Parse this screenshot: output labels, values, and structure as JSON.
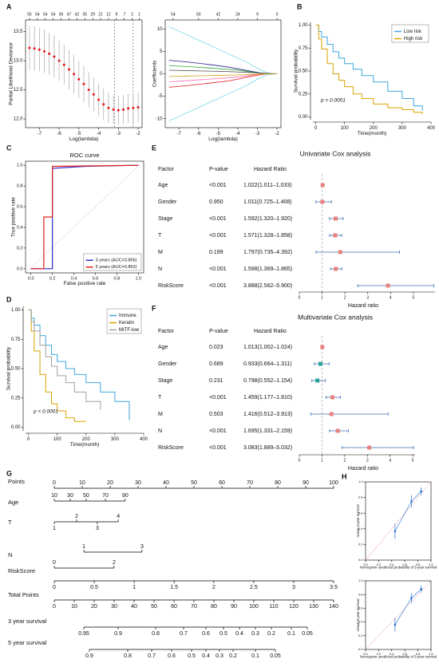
{
  "chart_data": [
    {
      "panel": "A",
      "type": "errorbar",
      "xlabel": "Log(lambda)",
      "ylabel": "Partial Likelihood Deviance",
      "x": [
        -7.5,
        -7.25,
        -7,
        -6.75,
        -6.5,
        -6.25,
        -6,
        -5.75,
        -5.5,
        -5.25,
        -5,
        -4.75,
        -4.5,
        -4.25,
        -4,
        -3.75,
        -3.5,
        -3.25,
        -3,
        -2.75,
        -2.5,
        -2.25,
        -2
      ],
      "values": [
        13.22,
        13.21,
        13.19,
        13.16,
        13.12,
        13.07,
        13.0,
        12.93,
        12.85,
        12.77,
        12.68,
        12.6,
        12.5,
        12.42,
        12.33,
        12.25,
        12.19,
        12.16,
        12.15,
        12.16,
        12.18,
        12.19,
        12.2
      ],
      "errors": [
        0.38,
        0.38,
        0.37,
        0.37,
        0.36,
        0.36,
        0.35,
        0.34,
        0.34,
        0.33,
        0.32,
        0.31,
        0.3,
        0.29,
        0.28,
        0.27,
        0.26,
        0.25,
        0.25,
        0.25,
        0.25,
        0.25,
        0.25
      ],
      "color": "#e8151b",
      "error_color": "#9a9a9a",
      "xlim": [
        -7.7,
        -1.8
      ],
      "xticks": [
        -7,
        -6,
        -5,
        -4,
        -3,
        -2
      ],
      "ylim": [
        11.85,
        13.7
      ],
      "yticks": [
        {
          "value": 12,
          "label": "12.0"
        },
        {
          "value": 12.5,
          "label": "12.5"
        },
        {
          "value": 13,
          "label": "13.0"
        },
        {
          "value": 13.5,
          "label": "13.5"
        }
      ],
      "top_x": [
        -7.5,
        -7.1,
        -6.7,
        -6.3,
        -5.9,
        -5.5,
        -5.1,
        -4.7,
        -4.3,
        -3.9,
        -3.5,
        -3.1,
        -2.7,
        -2.3,
        -1.95
      ],
      "top_labels": [
        55,
        54,
        54,
        54,
        56,
        47,
        42,
        35,
        29,
        21,
        12,
        9,
        7,
        2,
        1
      ],
      "vlines": [
        -3.2,
        -2.25
      ]
    },
    {
      "type": "line",
      "xlabel": "Log(lambda)",
      "ylabel": "Coefficients",
      "x": [
        -7.5,
        -6.5,
        -5.5,
        -4.5,
        -4,
        -3.5,
        -3,
        -2.5,
        -2
      ],
      "series": [
        {
          "color": "#6fd6ea",
          "values": [
            10.5,
            8.5,
            6.5,
            4.5,
            3.5,
            2.5,
            1.2,
            0.2,
            0
          ]
        },
        {
          "color": "#6fd6ea",
          "values": [
            -10.5,
            -8.5,
            -6.5,
            -4.5,
            -3.5,
            -2.5,
            -1.2,
            -0.2,
            0
          ]
        },
        {
          "color": "#1c1c8a",
          "values": [
            3,
            2.6,
            2.1,
            1.5,
            1.1,
            0.7,
            0.3,
            0,
            0
          ]
        },
        {
          "color": "#e8151b",
          "values": [
            -3,
            -2.6,
            -2.1,
            -1.6,
            -1.2,
            -0.7,
            -0.3,
            0,
            0
          ]
        },
        {
          "color": "#2ca02c",
          "values": [
            1.8,
            1.6,
            1.3,
            1,
            0.8,
            0.5,
            0.2,
            0,
            0
          ]
        },
        {
          "color": "#ff69b4",
          "values": [
            -1.8,
            -1.5,
            -1.2,
            -0.9,
            -0.7,
            -0.4,
            -0.1,
            0,
            0
          ]
        },
        {
          "color": "#555555",
          "values": [
            0.8,
            0.7,
            0.6,
            0.5,
            0.4,
            0.3,
            0.2,
            0.1,
            0
          ]
        },
        {
          "color": "#d4a017",
          "values": [
            -0.6,
            -0.5,
            -0.4,
            -0.3,
            -0.25,
            -0.2,
            -0.1,
            0,
            0
          ]
        }
      ],
      "xlim": [
        -7.7,
        -1.8
      ],
      "xticks": [
        -7,
        -6,
        -5,
        -4,
        -3,
        -2
      ],
      "ylim": [
        -12,
        12
      ],
      "yticks": [
        -10,
        -5,
        0,
        5,
        10
      ],
      "top_x": [
        -7.3,
        -6,
        -5,
        -4,
        -3,
        -2
      ],
      "top_labels": [
        54,
        50,
        42,
        24,
        9,
        0
      ]
    },
    {
      "panel": "B",
      "type": "km",
      "xlabel": "Time(month)",
      "ylabel": "Survival probability",
      "annotation": "p < 0.0001",
      "legend": "top-right",
      "series": [
        {
          "name": "Low risk",
          "color": "#3fa6dc",
          "x": [
            0,
            10,
            20,
            40,
            60,
            80,
            100,
            130,
            160,
            200,
            250,
            300,
            340,
            370
          ],
          "values": [
            1,
            0.93,
            0.87,
            0.79,
            0.71,
            0.64,
            0.58,
            0.52,
            0.45,
            0.38,
            0.28,
            0.2,
            0.12,
            0.07
          ]
        },
        {
          "name": "High risk",
          "color": "#d8a300",
          "x": [
            0,
            10,
            20,
            40,
            60,
            80,
            100,
            130,
            160,
            200,
            250,
            300,
            340,
            370
          ],
          "values": [
            1,
            0.85,
            0.74,
            0.58,
            0.47,
            0.4,
            0.33,
            0.25,
            0.2,
            0.14,
            0.1,
            0.08,
            0.05,
            0.03
          ]
        }
      ],
      "xlim": [
        -10,
        400
      ],
      "xticks": [
        0,
        100,
        200,
        300,
        400
      ],
      "ylim": [
        -0.03,
        1.03
      ],
      "yticks": [
        {
          "value": 0,
          "label": "0.00"
        },
        {
          "value": 0.25,
          "label": "0.25"
        },
        {
          "value": 0.5,
          "label": "0.50"
        },
        {
          "value": 0.75,
          "label": "0.75"
        },
        {
          "value": 1,
          "label": "1.00"
        }
      ]
    },
    {
      "panel": "C",
      "type": "roc",
      "title": "ROC curve",
      "xlabel": "False positive rate",
      "ylabel": "True positive rate",
      "diagonal": true,
      "legend": "bottom-right",
      "series": [
        {
          "name": "3 years (AUC=0.806)",
          "color": "#2b2bd0",
          "x": [
            0,
            0.2,
            0.2,
            0.5,
            1
          ],
          "values": [
            0,
            0,
            0.97,
            0.99,
            1
          ]
        },
        {
          "name": "5 years (AUC=0.862)",
          "color": "#e0201b",
          "x": [
            0,
            0.12,
            0.12,
            0.2,
            0.2,
            1
          ],
          "values": [
            0,
            0,
            0.5,
            0.5,
            0.99,
            1
          ]
        }
      ],
      "xlim": [
        -0.05,
        1.05
      ],
      "xticks": [
        {
          "value": 0,
          "label": "0.0"
        },
        0.2,
        0.4,
        0.6,
        0.8,
        {
          "value": 1,
          "label": "1.0"
        }
      ],
      "ylim": [
        -0.04,
        1.04
      ],
      "yticks": [
        {
          "value": 0,
          "label": "0.0"
        },
        0.2,
        0.4,
        0.6,
        0.8,
        {
          "value": 1,
          "label": "1.0"
        }
      ]
    },
    {
      "panel": "E",
      "type": "forest",
      "title": "Univariate Cox analysis",
      "headers": [
        "Factor",
        "P-value",
        "Hazard Ratio"
      ],
      "factors": [
        "Age",
        "Gender",
        "Stage",
        "T",
        "M",
        "N",
        "RiskScore"
      ],
      "p_values": [
        "<0.001",
        "0.950",
        "<0.001",
        "<0.001",
        "0.199",
        "<0.001",
        "<0.001"
      ],
      "hr_labels": [
        "1.022(1.011–1.033)",
        "1.011(0.725–1.408)",
        "1.592(1.320–1.920)",
        "1.571(1.328–1.858)",
        "1.797(0.735–4.392)",
        "1.598(1.369–1.865)",
        "3.888(2.562–5.900)"
      ],
      "hr": [
        1.022,
        1.011,
        1.592,
        1.571,
        1.797,
        1.598,
        3.888
      ],
      "lower": [
        1.011,
        0.725,
        1.32,
        1.328,
        0.735,
        1.369,
        2.562
      ],
      "upper": [
        1.033,
        1.408,
        1.92,
        1.858,
        4.392,
        1.865,
        5.9
      ],
      "color": "#e8817f",
      "ref": 1,
      "xlabel": "Hazard ratio",
      "xlim": [
        0,
        5.95
      ],
      "xticks": [
        0,
        1,
        2,
        3,
        4,
        5
      ]
    },
    {
      "panel": "D",
      "type": "km",
      "xlabel": "Time(month)",
      "ylabel": "Survival probability",
      "annotation": "p < 0.0001",
      "legend": "top-right",
      "series": [
        {
          "name": "Immune",
          "color": "#3fa6dc",
          "x": [
            0,
            10,
            20,
            40,
            60,
            80,
            100,
            130,
            160,
            200,
            250,
            300,
            350
          ],
          "values": [
            1,
            0.93,
            0.87,
            0.78,
            0.7,
            0.62,
            0.56,
            0.5,
            0.45,
            0.38,
            0.3,
            0.22,
            0.06
          ]
        },
        {
          "name": "Keratin",
          "color": "#d8a300",
          "x": [
            0,
            10,
            20,
            40,
            60,
            80,
            100,
            130,
            160,
            200
          ],
          "values": [
            1,
            0.82,
            0.65,
            0.45,
            0.3,
            0.2,
            0.14,
            0.08,
            0.05,
            0.05
          ]
        },
        {
          "name": "MITF-low",
          "color": "#a0a0a0",
          "x": [
            0,
            10,
            20,
            40,
            60,
            80,
            100,
            130,
            160,
            200,
            250
          ],
          "values": [
            1,
            0.9,
            0.82,
            0.7,
            0.6,
            0.52,
            0.44,
            0.38,
            0.3,
            0.22,
            0.15
          ]
        }
      ],
      "xlim": [
        -10,
        400
      ],
      "xticks": [
        0,
        100,
        200,
        300,
        400
      ],
      "ylim": [
        -0.03,
        1.03
      ],
      "yticks": [
        {
          "value": 0,
          "label": "0.00"
        },
        {
          "value": 0.25,
          "label": "0.25"
        },
        {
          "value": 0.5,
          "label": "0.50"
        },
        {
          "value": 0.75,
          "label": "0.75"
        },
        {
          "value": 1,
          "label": "1.00"
        }
      ]
    },
    {
      "panel": "F",
      "type": "forest",
      "title": "Multivariate Cox analysis",
      "headers": [
        "Factor",
        "P-value",
        "Hazard Ratio"
      ],
      "factors": [
        "Age",
        "Gender",
        "Stage",
        "T",
        "M",
        "N",
        "RiskScore"
      ],
      "p_values": [
        "0.023",
        "0.689",
        "0.231",
        "<0.001",
        "0.503",
        "<0.001",
        "<0.001"
      ],
      "hr_labels": [
        "1.013(1.002–1.024)",
        "0.933(0.664–1.311)",
        "0.798(0.552–1.154)",
        "1.459(1.177–1.810)",
        "1.416(0.512–3.913)",
        "1.695(1.331–2.159)",
        "3.083(1.889–5.032)"
      ],
      "hr": [
        1.013,
        0.933,
        0.798,
        1.459,
        1.416,
        1.695,
        3.083
      ],
      "lower": [
        1.002,
        0.664,
        0.552,
        1.177,
        0.512,
        1.331,
        1.889
      ],
      "upper": [
        1.024,
        1.311,
        1.154,
        1.81,
        3.913,
        2.159,
        5.032
      ],
      "colors": [
        "#e8817f",
        "#2aa198",
        "#2aa198",
        "#e8817f",
        "#e8817f",
        "#e8817f",
        "#e8817f"
      ],
      "ref": 1,
      "xlabel": "Hazard ratio",
      "xlim": [
        0,
        5.1
      ],
      "xticks": [
        0,
        1,
        2,
        3,
        4,
        5
      ]
    },
    {
      "panel": "G",
      "type": "nomogram",
      "points_name": "Points",
      "points_lim": [
        0,
        100
      ],
      "points_ticks": [
        0,
        10,
        20,
        30,
        40,
        50,
        60,
        70,
        80,
        90,
        100
      ],
      "rows": [
        {
          "name": "Age",
          "labels": [
            10,
            30,
            50,
            70,
            90
          ],
          "points": [
            0,
            5.7,
            11.4,
            18.3,
            25.4
          ]
        },
        {
          "name": "T",
          "labels": [
            1,
            2,
            3,
            4
          ],
          "points": [
            0,
            8,
            15.4,
            22.9
          ]
        },
        {
          "name": "N",
          "labels": [
            1,
            3
          ],
          "points": [
            10.6,
            31.4
          ]
        },
        {
          "name": "RiskScore",
          "labels": [
            0,
            2
          ],
          "points": [
            0,
            21.4
          ]
        },
        {
          "labels": [
            0,
            0.5,
            1,
            1.5,
            2,
            2.5,
            3,
            3.5
          ],
          "points": [
            0,
            14.3,
            28.6,
            42.9,
            57.1,
            71.4,
            85.7,
            100
          ]
        }
      ],
      "total": {
        "name": "Total Points",
        "lim": [
          0,
          140
        ],
        "ticks": [
          0,
          10,
          20,
          30,
          40,
          50,
          60,
          70,
          80,
          90,
          100,
          110,
          120,
          130,
          140
        ]
      },
      "survival": [
        {
          "name": "3 year survival",
          "labels": [
            0.95,
            0.9,
            0.8,
            0.7,
            0.6,
            0.5,
            0.4,
            0.3,
            0.2,
            0.1,
            0.05
          ],
          "total_points": [
            14.8,
            32,
            50.8,
            64.8,
            76,
            84.8,
            92.8,
            100.8,
            108.8,
            118.8,
            126.8
          ]
        },
        {
          "name": "5 year survival",
          "labels": [
            0.9,
            0.8,
            0.7,
            0.6,
            0.5,
            0.4,
            0.3,
            0.2,
            0.1,
            0.05
          ],
          "total_points": [
            17.6,
            36.8,
            48.8,
            58.8,
            68.8,
            76,
            82.8,
            89.6,
            100.8,
            110.8
          ]
        }
      ]
    },
    {
      "panel": "H",
      "type": "calibration",
      "xlabel": "Nomogram−predicted probability of 3-year survival",
      "ylabel": "Actual 3-year survival",
      "x": [
        0.45,
        0.7,
        0.85
      ],
      "values": [
        0.37,
        0.75,
        0.88
      ],
      "errors": [
        0.1,
        0.08,
        0.05
      ],
      "color": "#1f6fd6",
      "xlim": [
        0,
        1
      ],
      "xticks": [
        {
          "value": 0,
          "label": "0.0"
        },
        0.2,
        0.4,
        0.6,
        0.8,
        {
          "value": 1,
          "label": "1.0"
        }
      ],
      "ylim": [
        0,
        1
      ],
      "yticks": [
        {
          "value": 0,
          "label": "0.0"
        },
        0.2,
        0.4,
        0.6,
        0.8,
        {
          "value": 1,
          "label": "1.0"
        }
      ]
    },
    {
      "type": "calibration",
      "xlabel": "Nomogram−predicted probability of 5-year survival",
      "ylabel": "Actual 5-year survival",
      "x": [
        0.45,
        0.7,
        0.85
      ],
      "values": [
        0.36,
        0.75,
        0.88
      ],
      "errors": [
        0.1,
        0.07,
        0.05
      ],
      "color": "#1f6fd6",
      "xlim": [
        0,
        1
      ],
      "xticks": [
        {
          "value": 0,
          "label": "0.0"
        },
        0.2,
        0.4,
        0.6,
        0.8,
        {
          "value": 1,
          "label": "1.0"
        }
      ],
      "ylim": [
        0,
        1
      ],
      "yticks": [
        {
          "value": 0,
          "label": "0.0"
        },
        0.2,
        0.4,
        0.6,
        0.8,
        {
          "value": 1,
          "label": "1.0"
        }
      ]
    }
  ]
}
